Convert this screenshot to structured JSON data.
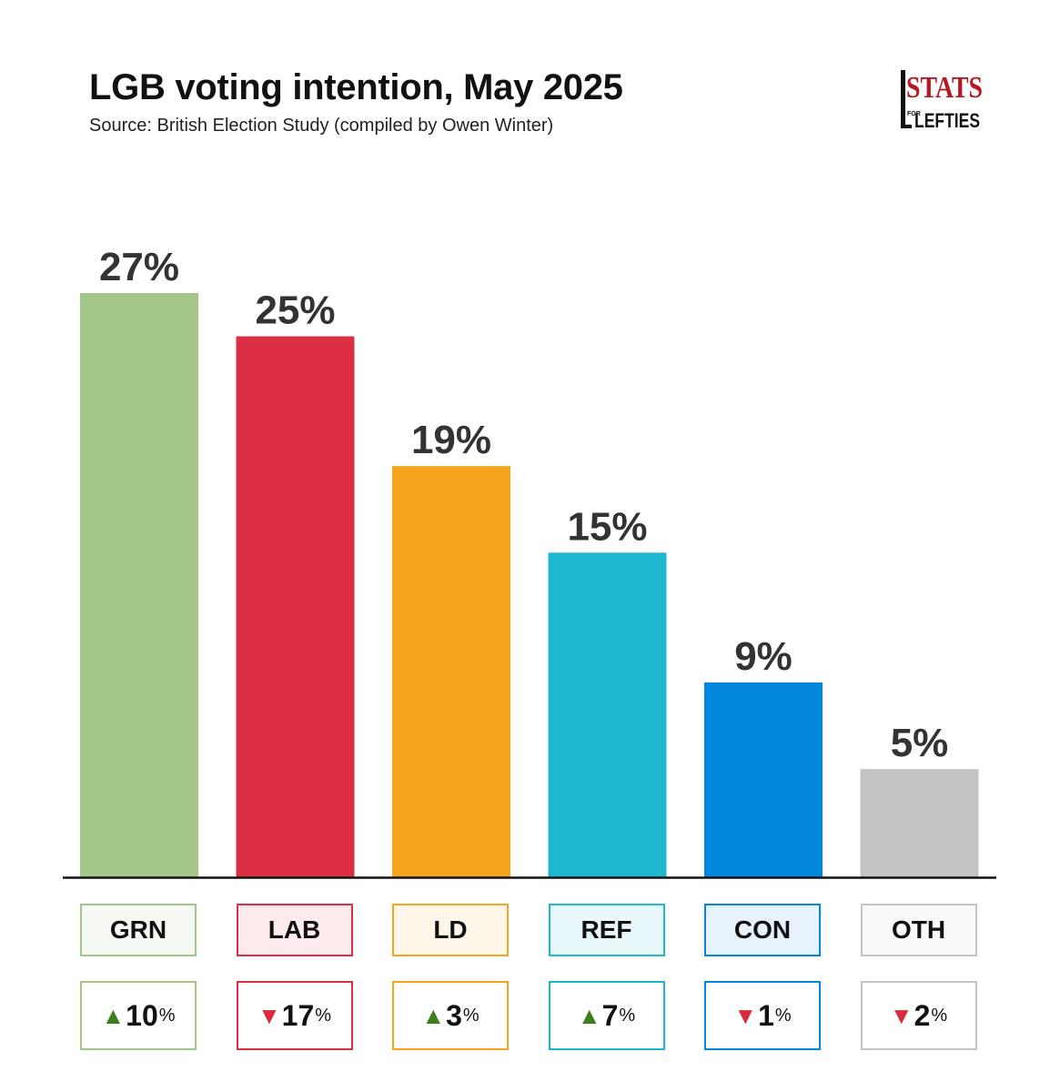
{
  "header": {
    "title": "LGB voting intention, May 2025",
    "subtitle": "Source: British Election Study (compiled by Owen Winter)"
  },
  "logo": {
    "stats": "STATS",
    "for": "FOR",
    "lefties": "LEFTIES"
  },
  "colors": {
    "GRN": "#a3c68a",
    "LAB": "#dc2f43",
    "LD": "#f5a51d",
    "REF": "#1db8d0",
    "CON": "#0387dc",
    "OTH": "#c4c4c4",
    "up_arrow": "#3c7f1d",
    "down_arrow": "#d82b3e",
    "text": "#333333"
  },
  "chart_data": {
    "type": "bar",
    "title": "LGB voting intention, May 2025",
    "subtitle": "Source: British Election Study (compiled by Owen Winter)",
    "categories": [
      "GRN",
      "LAB",
      "LD",
      "REF",
      "CON",
      "OTH"
    ],
    "values": [
      27,
      25,
      19,
      15,
      9,
      5
    ],
    "value_labels": [
      "27%",
      "25%",
      "19%",
      "15%",
      "9%",
      "5%"
    ],
    "changes": [
      {
        "direction": "up",
        "arrow": "▲",
        "value": "10",
        "unit": "%"
      },
      {
        "direction": "down",
        "arrow": "▼",
        "value": "17",
        "unit": "%"
      },
      {
        "direction": "up",
        "arrow": "▲",
        "value": "3",
        "unit": "%"
      },
      {
        "direction": "up",
        "arrow": "▲",
        "value": "7",
        "unit": "%"
      },
      {
        "direction": "down",
        "arrow": "▼",
        "value": "1",
        "unit": "%"
      },
      {
        "direction": "down",
        "arrow": "▼",
        "value": "2",
        "unit": "%"
      }
    ],
    "xlabel": "",
    "ylabel": "",
    "ylim": [
      0,
      27
    ],
    "grid": false,
    "legend": "none"
  }
}
